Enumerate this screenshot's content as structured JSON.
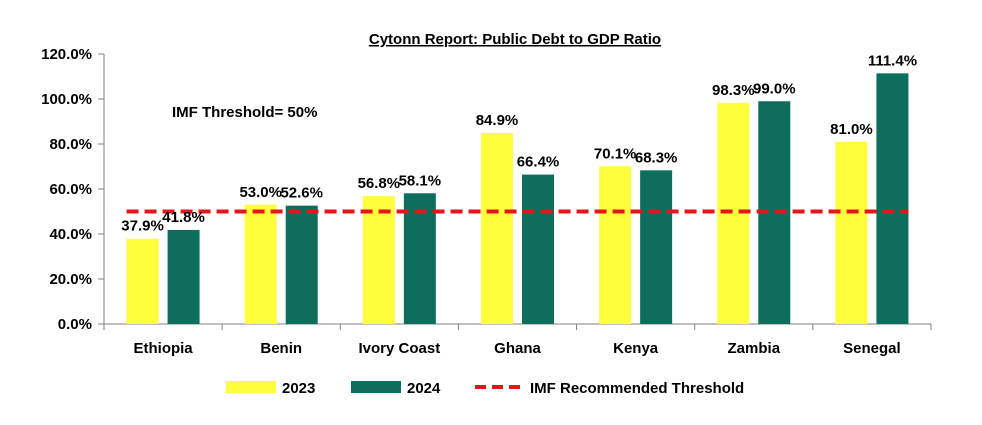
{
  "chart_data": {
    "type": "bar",
    "title": "Cytonn Report: Public Debt to GDP Ratio",
    "categories": [
      "Ethiopia",
      "Benin",
      "Ivory Coast",
      "Ghana",
      "Kenya",
      "Zambia",
      "Senegal"
    ],
    "series": [
      {
        "name": "2023",
        "color": "#FFFF3C",
        "values": [
          37.9,
          53.0,
          56.8,
          84.9,
          70.1,
          98.3,
          81.0
        ],
        "labels": [
          "37.9%",
          "53.0%",
          "56.8%",
          "84.9%",
          "70.1%",
          "98.3%",
          "81.0%"
        ]
      },
      {
        "name": "2024",
        "color": "#0E6E5C",
        "values": [
          41.8,
          52.6,
          58.1,
          66.4,
          68.3,
          99.0,
          111.4
        ],
        "labels": [
          "41.8%",
          "52.6%",
          "58.1%",
          "66.4%",
          "68.3%",
          "99.0%",
          "111.4%"
        ]
      }
    ],
    "threshold": {
      "name": "IMF Recommended Threshold",
      "value": 50,
      "color": "#E8141B",
      "style": "dashed"
    },
    "annotation": "IMF Threshold= 50%",
    "yticks": [
      "0.0%",
      "20.0%",
      "40.0%",
      "60.0%",
      "80.0%",
      "100.0%",
      "120.0%"
    ],
    "ylim": [
      0,
      120
    ],
    "xlabel": "",
    "ylabel": "",
    "grid": false,
    "legend_position": "bottom"
  }
}
